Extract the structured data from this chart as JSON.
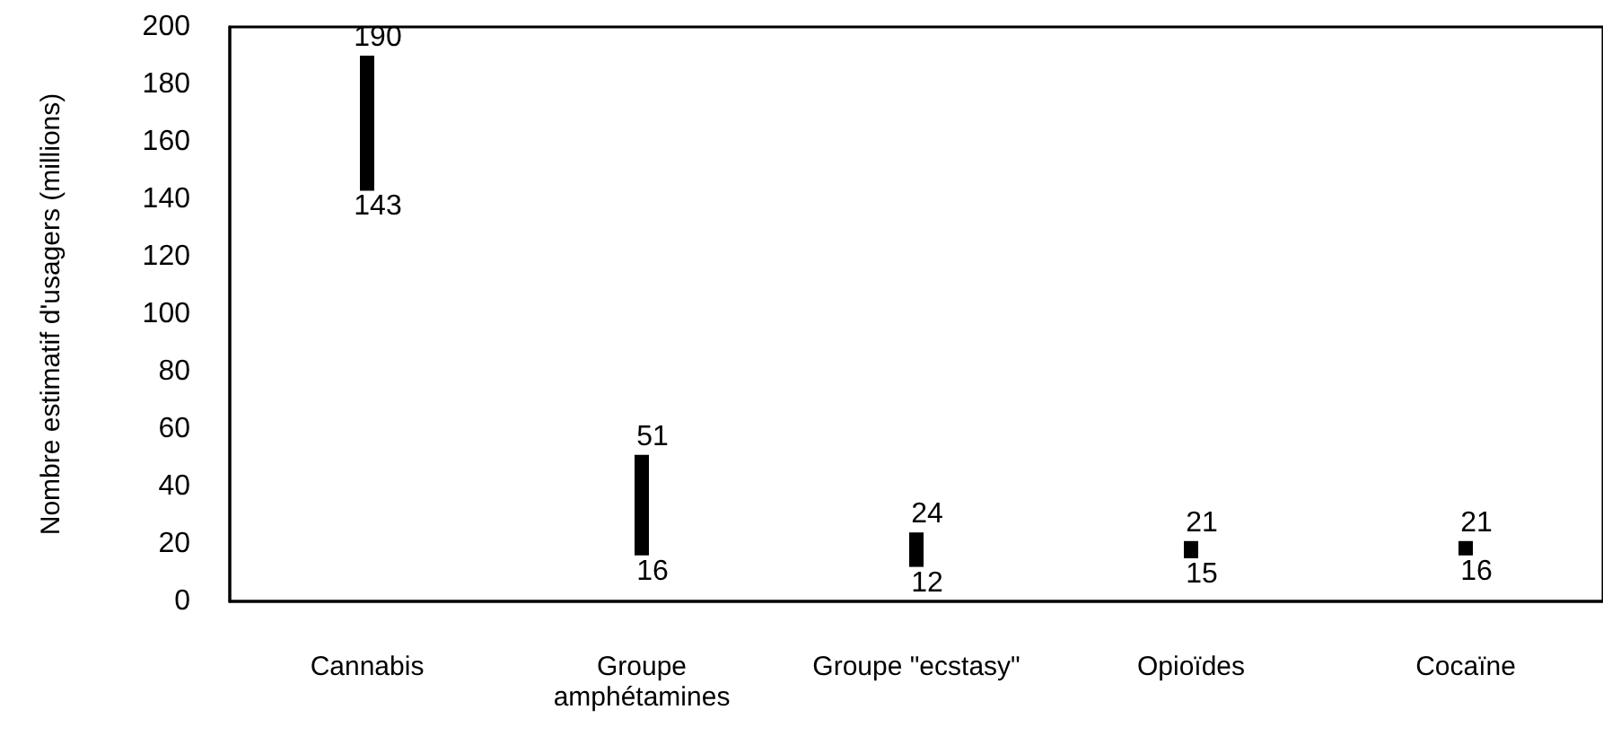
{
  "chart_data": {
    "type": "bar",
    "ylabel": "Nombre estimatif d'usagers (millions)",
    "categories": [
      "Cannabis",
      "Groupe\namphétamines",
      "Groupe \"ecstasy\"",
      "Opioïdes",
      "Cocaïne"
    ],
    "base": [
      143,
      16,
      12,
      15,
      16
    ],
    "values": [
      47,
      35,
      12,
      6,
      5
    ],
    "color": "#000000",
    "ylim": [
      0,
      200
    ],
    "yticks": [
      0,
      20,
      40,
      60,
      80,
      100,
      120,
      140,
      160,
      180,
      200
    ],
    "grid": false,
    "annotations": [
      {
        "text": "190",
        "x": "Cannabis",
        "y": 190
      },
      {
        "text": "143",
        "x": "Cannabis",
        "y": 143
      },
      {
        "text": "51",
        "x": "Groupe\namphétamines",
        "y": 51
      },
      {
        "text": "16",
        "x": "Groupe\namphétamines",
        "y": 16
      },
      {
        "text": "24",
        "x": "Groupe \"ecstasy\"",
        "y": 24
      },
      {
        "text": "12",
        "x": "Groupe \"ecstasy\"",
        "y": 12
      },
      {
        "text": "21",
        "x": "Opioïdes",
        "y": 21
      },
      {
        "text": "15",
        "x": "Opioïdes",
        "y": 15
      },
      {
        "text": "21",
        "x": "Cocaïne",
        "y": 21
      },
      {
        "text": "16",
        "x": "Cocaïne",
        "y": 16
      }
    ]
  }
}
